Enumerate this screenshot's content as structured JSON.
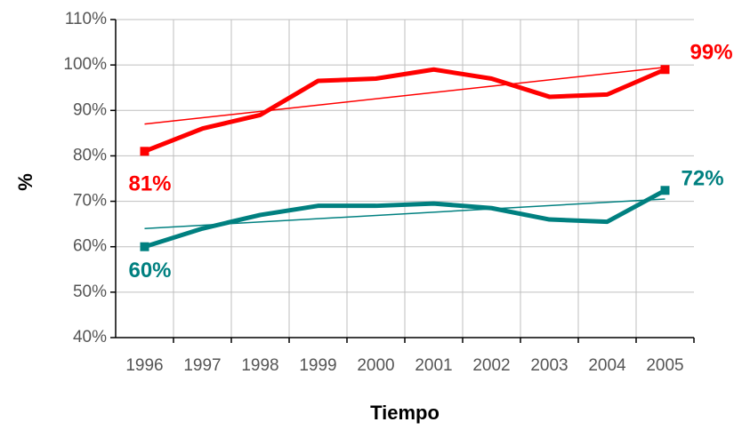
{
  "chart_data": {
    "type": "line",
    "y_label": "%",
    "x_label": "Tiempo",
    "categories": [
      "1996",
      "1997",
      "1998",
      "1999",
      "2000",
      "2001",
      "2002",
      "2003",
      "2004",
      "2005"
    ],
    "series": [
      {
        "color": "#ff0000",
        "values": [
          81,
          86,
          89,
          96.5,
          97,
          99,
          97,
          93,
          93.5,
          99
        ],
        "value_labels": [
          "81%",
          null,
          null,
          null,
          null,
          null,
          null,
          null,
          null,
          "99%"
        ],
        "trend": [
          87,
          99.5
        ]
      },
      {
        "color": "#008080",
        "values": [
          60,
          64,
          67,
          69,
          69,
          69.5,
          68.5,
          66,
          65.5,
          72.4
        ],
        "value_labels": [
          "60%",
          null,
          null,
          null,
          null,
          null,
          null,
          null,
          null,
          "72%"
        ],
        "trend": [
          64,
          70.5
        ]
      }
    ],
    "ylim": [
      40,
      110
    ],
    "yticks": [
      {
        "value": 40,
        "label": "40%"
      },
      {
        "value": 50,
        "label": "50%"
      },
      {
        "value": 60,
        "label": "60%"
      },
      {
        "value": 70,
        "label": "70%"
      },
      {
        "value": 80,
        "label": "80%"
      },
      {
        "value": 90,
        "label": "90%"
      },
      {
        "value": 100,
        "label": "100%"
      },
      {
        "value": 110,
        "label": "110%"
      }
    ],
    "grid": true
  }
}
